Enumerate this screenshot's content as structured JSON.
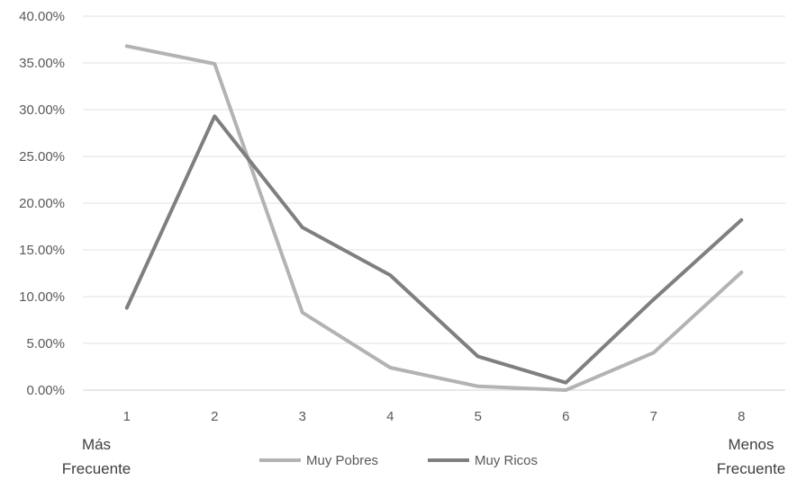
{
  "chart_data": {
    "type": "line",
    "title": "",
    "xlabel": "",
    "ylabel": "",
    "categories": [
      "1",
      "2",
      "3",
      "4",
      "5",
      "6",
      "7",
      "8"
    ],
    "x_end_labels": {
      "left": [
        "Más",
        "Frecuente"
      ],
      "right": [
        "Menos",
        "Frecuente"
      ]
    },
    "ylim": [
      0,
      40
    ],
    "y_ticks": [
      0,
      5,
      10,
      15,
      20,
      25,
      30,
      35,
      40
    ],
    "y_tick_labels": [
      "0.00%",
      "5.00%",
      "10.00%",
      "15.00%",
      "20.00%",
      "25.00%",
      "30.00%",
      "35.00%",
      "40.00%"
    ],
    "y_unit": "%",
    "grid": true,
    "legend_position": "bottom",
    "series": [
      {
        "name": "Muy Pobres",
        "color": "#b3b3b3",
        "values": [
          36.8,
          34.9,
          8.3,
          2.4,
          0.4,
          0.0,
          4.0,
          12.6
        ]
      },
      {
        "name": "Muy Ricos",
        "color": "#7f7f7f",
        "values": [
          8.8,
          29.3,
          17.4,
          12.3,
          3.6,
          0.8,
          9.7,
          18.2
        ]
      }
    ]
  }
}
